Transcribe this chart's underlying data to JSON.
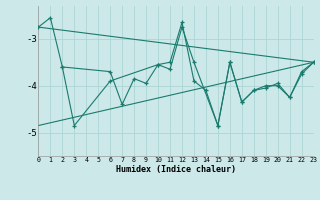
{
  "xlabel": "Humidex (Indice chaleur)",
  "background_color": "#cce8e8",
  "grid_color": "#add4d4",
  "line_color": "#1a7a6e",
  "xlim": [
    0,
    23
  ],
  "ylim": [
    -5.5,
    -2.3
  ],
  "yticks": [
    -5,
    -4,
    -3
  ],
  "xticks": [
    0,
    1,
    2,
    3,
    4,
    5,
    6,
    7,
    8,
    9,
    10,
    11,
    12,
    13,
    14,
    15,
    16,
    17,
    18,
    19,
    20,
    21,
    22,
    23
  ],
  "s1_x": [
    0,
    1,
    2,
    3,
    6,
    10,
    11,
    12,
    13,
    14,
    15,
    16,
    17,
    18,
    19,
    20,
    21,
    22,
    23
  ],
  "s1_y": [
    -2.75,
    -2.55,
    -3.6,
    -4.85,
    -3.9,
    -3.55,
    -3.5,
    -2.65,
    -3.9,
    -4.1,
    -4.85,
    -3.5,
    -4.35,
    -4.1,
    -4.0,
    -4.0,
    -4.25,
    -3.7,
    -3.5
  ],
  "s2_x": [
    2,
    6,
    7,
    8,
    9,
    10,
    11,
    12,
    13,
    15,
    16,
    17,
    18,
    19,
    20,
    21,
    22,
    23
  ],
  "s2_y": [
    -3.6,
    -3.7,
    -4.4,
    -3.85,
    -3.95,
    -3.55,
    -3.65,
    -2.75,
    -3.5,
    -4.85,
    -3.5,
    -4.35,
    -4.1,
    -4.05,
    -3.95,
    -4.25,
    -3.75,
    -3.5
  ],
  "trend1_x": [
    0,
    23
  ],
  "trend1_y": [
    -2.75,
    -3.5
  ],
  "trend2_x": [
    0,
    23
  ],
  "trend2_y": [
    -4.85,
    -3.5
  ]
}
